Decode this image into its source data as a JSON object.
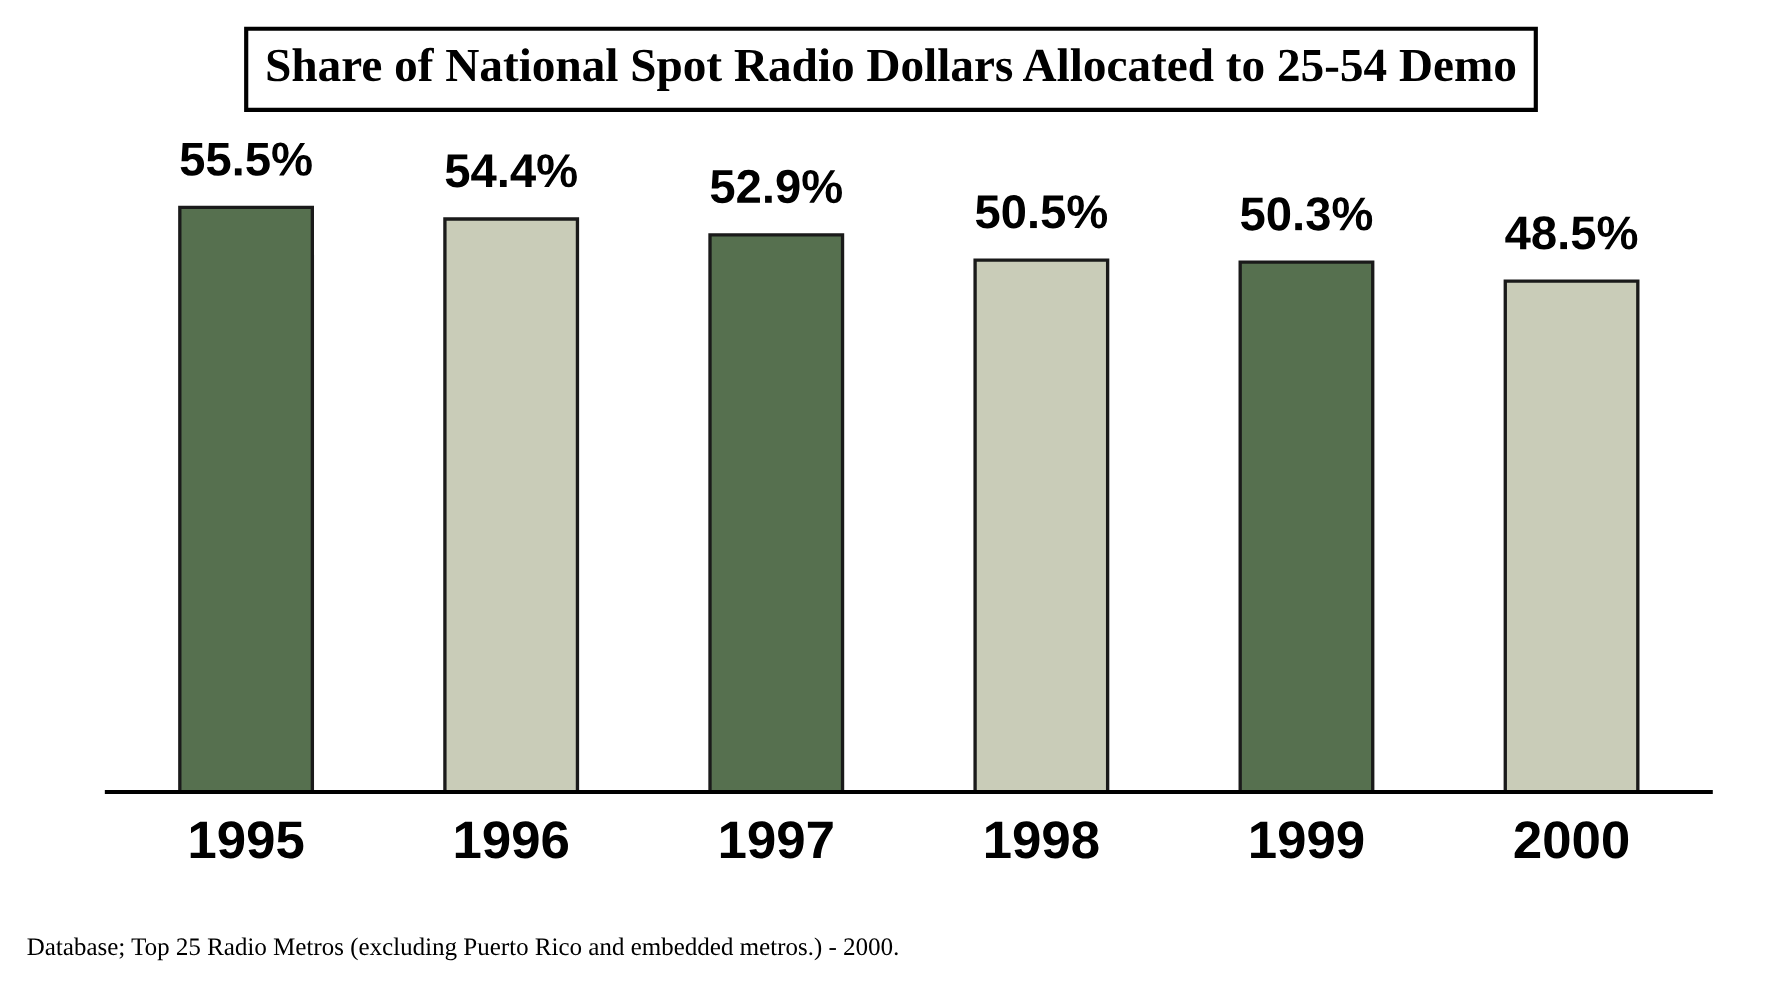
{
  "chart_data": {
    "type": "bar",
    "title": "Share of National Spot Radio Dollars Allocated to 25-54 Demo",
    "categories": [
      "1995",
      "1996",
      "1997",
      "1998",
      "1999",
      "2000"
    ],
    "values": [
      55.5,
      54.4,
      52.9,
      50.5,
      50.3,
      48.5
    ],
    "value_labels": [
      "55.5%",
      "54.4%",
      "52.9%",
      "50.5%",
      "50.3%",
      "48.5%"
    ],
    "colors": [
      "#56704f",
      "#c9ccb8",
      "#56704f",
      "#c9ccb8",
      "#56704f",
      "#c9ccb8"
    ],
    "annotations": [
      "Database; Top 25 Radio Metros (excluding Puerto Rico and embedded metros.) - 2000."
    ]
  }
}
